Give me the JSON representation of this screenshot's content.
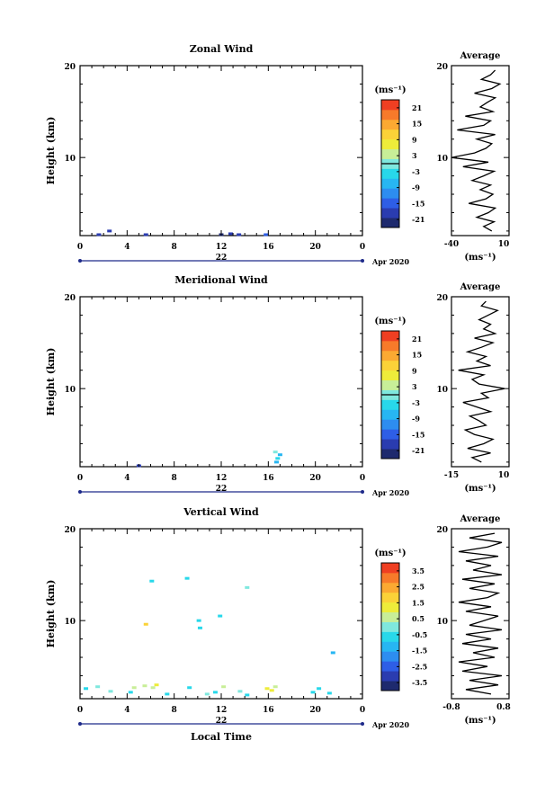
{
  "figure": {
    "xlabel": "Local Time",
    "colorbar_unit": "(ms⁻¹)",
    "date_label": "Apr 2020",
    "day_label": "22"
  },
  "chart_data": [
    {
      "id": "zonal",
      "type": "heatmap",
      "title": "Zonal Wind",
      "ylabel": "Height (km)",
      "xlim": [
        0,
        24
      ],
      "ylim": [
        1.5,
        20
      ],
      "x_ticks": [
        "0",
        "4",
        "8",
        "12",
        "16",
        "20",
        "0"
      ],
      "y_ticks": [
        10,
        20
      ],
      "colorbar": {
        "ticks": [
          "21",
          "15",
          "9",
          "3",
          "-3",
          "-9",
          "-15",
          "-21"
        ],
        "range": [
          -24,
          24
        ],
        "zero_line": 0
      },
      "cells": [
        {
          "x": 1.6,
          "y": 1.6,
          "v": -18
        },
        {
          "x": 2.5,
          "y": 2.0,
          "v": -20
        },
        {
          "x": 5.6,
          "y": 1.6,
          "v": -18
        },
        {
          "x": 12.0,
          "y": 1.6,
          "v": -21
        },
        {
          "x": 12.8,
          "y": 1.7,
          "v": -20
        },
        {
          "x": 13.5,
          "y": 1.6,
          "v": -18
        },
        {
          "x": 15.8,
          "y": 1.6,
          "v": -15
        }
      ],
      "profile": {
        "title": "Average",
        "xlim": [
          -40,
          10
        ],
        "x_ticks": [
          "-40",
          "10"
        ],
        "y_ticks": [
          "10",
          "20"
        ],
        "xlabel": "(ms⁻¹)",
        "heights": [
          2.0,
          2.5,
          3.0,
          3.5,
          4.0,
          4.5,
          5.0,
          5.5,
          6.0,
          6.5,
          7.0,
          7.5,
          8.0,
          8.5,
          9.0,
          9.5,
          10.0,
          10.5,
          11.0,
          11.5,
          12.0,
          12.5,
          13.0,
          13.5,
          14.0,
          14.5,
          15.0,
          15.5,
          16.0,
          16.5,
          17.0,
          17.5,
          18.0,
          18.5,
          19.0,
          19.5
        ],
        "values": [
          -5,
          -12,
          -3,
          -18,
          -8,
          -2,
          -25,
          -10,
          -4,
          -15,
          -6,
          -22,
          -12,
          -3,
          -30,
          -8,
          -40,
          -20,
          -10,
          -5,
          -18,
          -2,
          -35,
          -12,
          -6,
          -28,
          -4,
          -15,
          -9,
          -2,
          -20,
          -5,
          2,
          -14,
          -6,
          -2
        ]
      }
    },
    {
      "id": "meridional",
      "type": "heatmap",
      "title": "Meridional Wind",
      "ylabel": "Height (km)",
      "xlim": [
        0,
        24
      ],
      "ylim": [
        1.5,
        20
      ],
      "x_ticks": [
        "0",
        "4",
        "8",
        "12",
        "16",
        "20",
        "0"
      ],
      "y_ticks": [
        10,
        20
      ],
      "colorbar": {
        "ticks": [
          "21",
          "15",
          "9",
          "3",
          "-3",
          "-9",
          "-15",
          "-21"
        ],
        "range": [
          -24,
          24
        ],
        "zero_line": 0
      },
      "cells": [
        {
          "x": 5.0,
          "y": 1.6,
          "v": -18
        },
        {
          "x": 16.7,
          "y": 2.0,
          "v": -6
        },
        {
          "x": 16.8,
          "y": 2.4,
          "v": -3
        },
        {
          "x": 17.0,
          "y": 2.8,
          "v": -9
        },
        {
          "x": 16.6,
          "y": 3.1,
          "v": -1
        }
      ],
      "profile": {
        "title": "Average",
        "xlim": [
          -15,
          10
        ],
        "x_ticks": [
          "-15",
          "10"
        ],
        "y_ticks": [
          "10",
          "20"
        ],
        "xlabel": "(ms⁻¹)",
        "heights": [
          2.0,
          2.5,
          3.0,
          3.5,
          4.0,
          4.5,
          5.0,
          5.5,
          6.0,
          6.5,
          7.0,
          7.5,
          8.0,
          8.5,
          9.0,
          9.5,
          10.0,
          10.5,
          11.0,
          11.5,
          12.0,
          12.5,
          13.0,
          13.5,
          14.0,
          14.5,
          15.0,
          15.5,
          16.0,
          16.5,
          17.0,
          17.5,
          18.0,
          18.5,
          19.0,
          19.5
        ],
        "values": [
          -2,
          -6,
          2,
          -8,
          -1,
          3,
          -5,
          -9,
          0,
          -3,
          -7,
          2,
          -4,
          -10,
          1,
          -2,
          8,
          -3,
          -6,
          -1,
          -12,
          2,
          -4,
          0,
          -8,
          -2,
          3,
          -5,
          4,
          -1,
          2,
          -3,
          1,
          5,
          -2,
          0
        ]
      }
    },
    {
      "id": "vertical",
      "type": "heatmap",
      "title": "Vertical Wind",
      "ylabel": "Height (km)",
      "xlabel": "Local Time",
      "xlim": [
        0,
        24
      ],
      "ylim": [
        1.5,
        20
      ],
      "x_ticks": [
        "0",
        "4",
        "8",
        "12",
        "16",
        "20",
        "0"
      ],
      "y_ticks": [
        10,
        20
      ],
      "colorbar": {
        "ticks": [
          "3.5",
          "2.5",
          "1.5",
          "0.5",
          "-0.5",
          "-1.5",
          "-2.5",
          "-3.5"
        ],
        "range": [
          -4,
          4
        ],
        "zero_line": null
      },
      "cells": [
        {
          "x": 0.5,
          "y": 2.6,
          "v": -0.4
        },
        {
          "x": 1.5,
          "y": 2.8,
          "v": -0.2
        },
        {
          "x": 2.6,
          "y": 2.3,
          "v": -0.3
        },
        {
          "x": 4.3,
          "y": 2.2,
          "v": -0.5
        },
        {
          "x": 4.6,
          "y": 2.7,
          "v": 0.8
        },
        {
          "x": 5.5,
          "y": 2.9,
          "v": 0.9
        },
        {
          "x": 6.2,
          "y": 2.7,
          "v": 0.7
        },
        {
          "x": 6.5,
          "y": 3.0,
          "v": 1.0
        },
        {
          "x": 7.4,
          "y": 2.0,
          "v": -0.6
        },
        {
          "x": 9.3,
          "y": 2.7,
          "v": -0.4
        },
        {
          "x": 10.8,
          "y": 2.0,
          "v": -0.3
        },
        {
          "x": 11.5,
          "y": 2.2,
          "v": -0.5
        },
        {
          "x": 12.2,
          "y": 2.8,
          "v": 0.6
        },
        {
          "x": 13.6,
          "y": 2.3,
          "v": -0.3
        },
        {
          "x": 14.2,
          "y": 1.9,
          "v": -0.6
        },
        {
          "x": 15.9,
          "y": 2.6,
          "v": 1.0
        },
        {
          "x": 16.3,
          "y": 2.4,
          "v": 1.2
        },
        {
          "x": 16.6,
          "y": 2.8,
          "v": 0.9
        },
        {
          "x": 19.8,
          "y": 2.2,
          "v": -0.6
        },
        {
          "x": 20.3,
          "y": 2.6,
          "v": -0.4
        },
        {
          "x": 21.2,
          "y": 2.1,
          "v": -0.5
        },
        {
          "x": 6.1,
          "y": 14.3,
          "v": -0.7
        },
        {
          "x": 9.1,
          "y": 14.6,
          "v": -0.4
        },
        {
          "x": 14.2,
          "y": 13.6,
          "v": -0.3
        },
        {
          "x": 5.6,
          "y": 9.6,
          "v": 1.6
        },
        {
          "x": 10.1,
          "y": 10.0,
          "v": -0.6
        },
        {
          "x": 10.2,
          "y": 9.2,
          "v": -0.9
        },
        {
          "x": 11.9,
          "y": 10.5,
          "v": -0.5
        },
        {
          "x": 21.5,
          "y": 6.5,
          "v": -1.0
        }
      ],
      "profile": {
        "title": "Average",
        "xlim": [
          -0.8,
          0.8
        ],
        "x_ticks": [
          "-0.8",
          "0.8"
        ],
        "y_ticks": [
          "10",
          "20"
        ],
        "xlabel": "(ms⁻¹)",
        "heights": [
          2.0,
          2.5,
          3.0,
          3.5,
          4.0,
          4.5,
          5.0,
          5.5,
          6.0,
          6.5,
          7.0,
          7.5,
          8.0,
          8.5,
          9.0,
          9.5,
          10.0,
          10.5,
          11.0,
          11.5,
          12.0,
          12.5,
          13.0,
          13.5,
          14.0,
          14.5,
          15.0,
          15.5,
          16.0,
          16.5,
          17.0,
          17.5,
          18.0,
          18.5,
          19.0,
          19.5
        ],
        "values": [
          0.3,
          -0.4,
          0.5,
          -0.3,
          0.6,
          -0.5,
          0.2,
          -0.6,
          0.4,
          -0.2,
          0.5,
          -0.5,
          0.3,
          -0.4,
          0.6,
          -0.3,
          0.1,
          0.5,
          -0.4,
          0.3,
          -0.6,
          0.2,
          0.5,
          -0.3,
          0.4,
          -0.5,
          0.6,
          -0.2,
          0.3,
          -0.4,
          0.5,
          -0.6,
          0.2,
          0.6,
          -0.3,
          0.4
        ]
      }
    }
  ],
  "colors": {
    "colormap": [
      "#1e2a6e",
      "#2a3cb0",
      "#2e5ee6",
      "#2d8df0",
      "#27b6f2",
      "#28d8ea",
      "#7fe8de",
      "#c8ee98",
      "#eeec3a",
      "#fbd238",
      "#fba932",
      "#f77a2a",
      "#ef3f22"
    ]
  }
}
